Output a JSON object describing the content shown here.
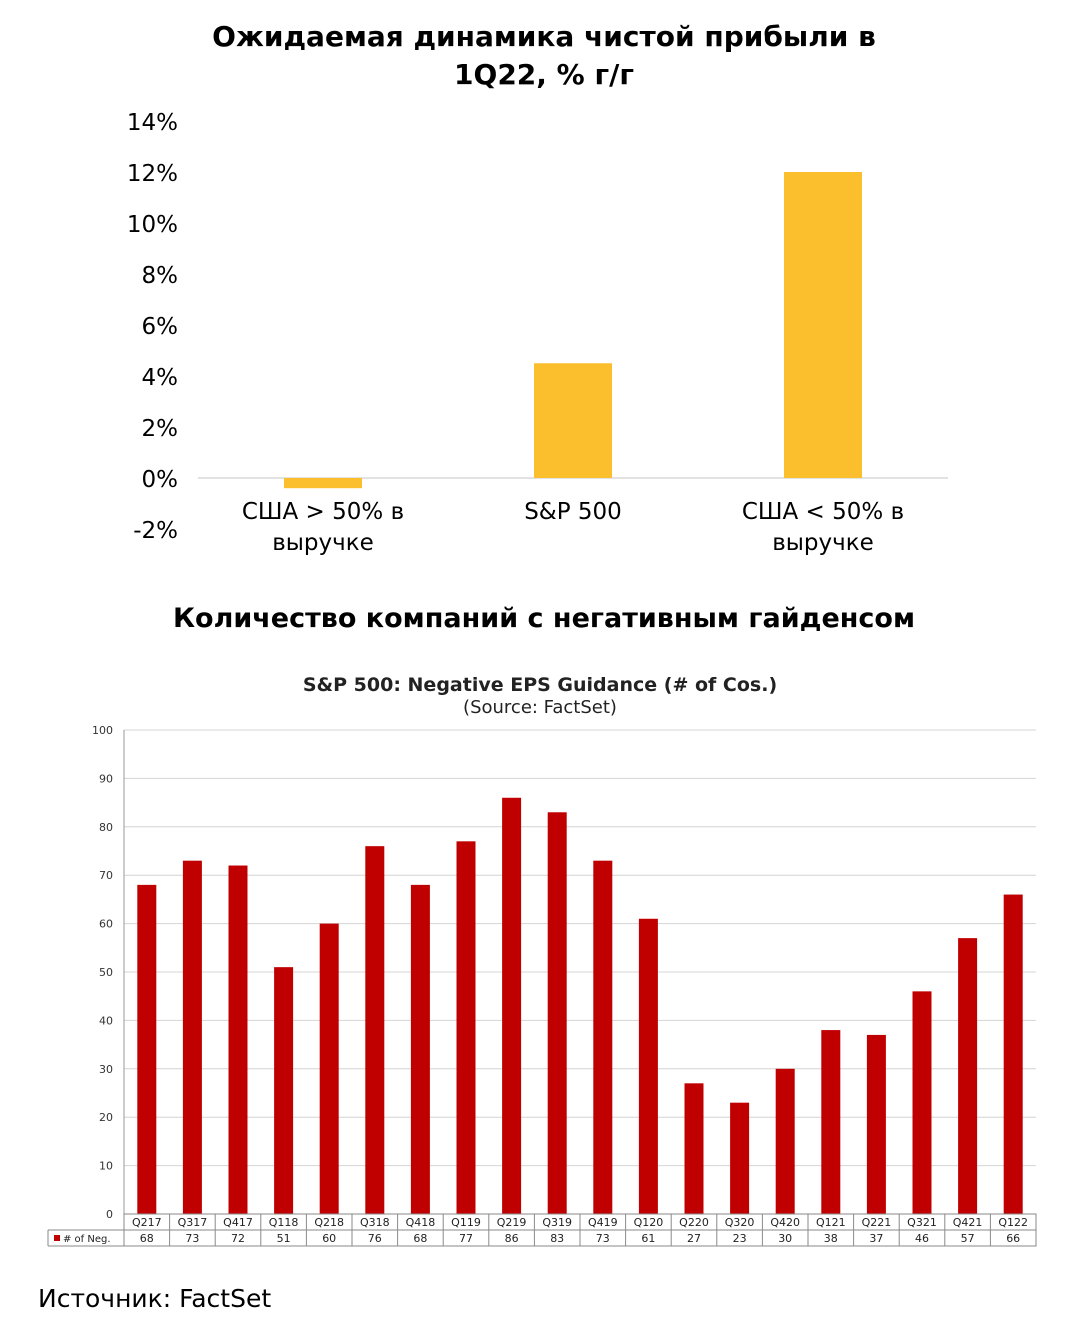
{
  "source_text": "Источник: FactSet",
  "chart_data": [
    {
      "type": "bar",
      "title": "Ожидаемая динамика чистой прибыли в 1Q22, % г/г",
      "title_lines": [
        "Ожидаемая динамика чистой прибыли в",
        "1Q22, % г/г"
      ],
      "categories": [
        [
          "США > 50% в",
          "выручке"
        ],
        [
          "S&P 500"
        ],
        [
          "США < 50% в",
          "выручке"
        ]
      ],
      "values": [
        -0.4,
        4.5,
        12.0
      ],
      "y_ticks": [
        "14%",
        "12%",
        "10%",
        "8%",
        "6%",
        "4%",
        "2%",
        "0%",
        "-2%"
      ],
      "ylim": [
        -2,
        14
      ],
      "bar_color": "#FBBE2D",
      "grid": false
    },
    {
      "type": "bar",
      "header_title": "Количество компаний с негативным гайденсом",
      "title": "S&P 500: Negative EPS Guidance (# of Cos.)",
      "subtitle": "(Source: FactSet)",
      "categories": [
        "Q217",
        "Q317",
        "Q417",
        "Q118",
        "Q218",
        "Q318",
        "Q418",
        "Q119",
        "Q219",
        "Q319",
        "Q419",
        "Q120",
        "Q220",
        "Q320",
        "Q420",
        "Q121",
        "Q221",
        "Q321",
        "Q421",
        "Q122"
      ],
      "series": [
        {
          "name": "# of Neg.",
          "values": [
            68,
            73,
            72,
            51,
            60,
            76,
            68,
            77,
            86,
            83,
            73,
            61,
            27,
            23,
            30,
            38,
            37,
            46,
            57,
            66
          ]
        }
      ],
      "y_ticks": [
        "100",
        "90",
        "80",
        "70",
        "60",
        "50",
        "40",
        "30",
        "20",
        "10",
        "0"
      ],
      "ylim": [
        0,
        100
      ],
      "bar_color": "#C00000",
      "grid": true,
      "legend": "data-table"
    }
  ]
}
